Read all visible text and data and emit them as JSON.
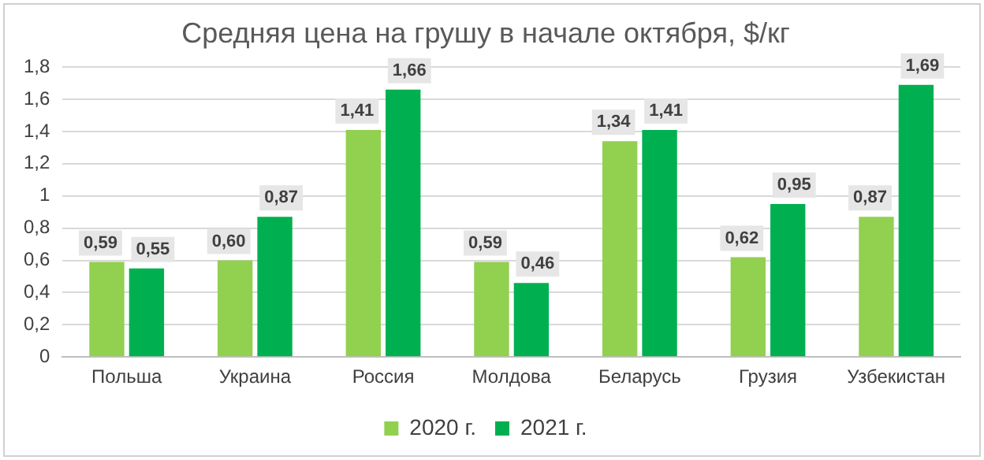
{
  "chart_data": {
    "type": "bar",
    "title": "Средняя цена на грушу в начале октября, $/кг",
    "categories": [
      "Польша",
      "Украина",
      "Россия",
      "Молдова",
      "Беларусь",
      "Грузия",
      "Узбекистан"
    ],
    "series": [
      {
        "name": "2020 г.",
        "color": "#92d050",
        "values": [
          0.59,
          0.6,
          1.41,
          0.59,
          1.34,
          0.62,
          0.87
        ],
        "value_labels": [
          "0,59",
          "0,60",
          "1,41",
          "0,59",
          "1,34",
          "0,62",
          "0,87"
        ]
      },
      {
        "name": "2021 г.",
        "color": "#00b050",
        "values": [
          0.55,
          0.87,
          1.66,
          0.46,
          1.41,
          0.95,
          1.69
        ],
        "value_labels": [
          "0,55",
          "0,87",
          "1,66",
          "0,46",
          "1,41",
          "0,95",
          "1,69"
        ]
      }
    ],
    "ylim": [
      0,
      1.8
    ],
    "yticks": [
      {
        "value": 0,
        "label": "0"
      },
      {
        "value": 0.2,
        "label": "0,2"
      },
      {
        "value": 0.4,
        "label": "0,4"
      },
      {
        "value": 0.6,
        "label": "0,6"
      },
      {
        "value": 0.8,
        "label": "0,8"
      },
      {
        "value": 1,
        "label": "1"
      },
      {
        "value": 1.2,
        "label": "1,2"
      },
      {
        "value": 1.4,
        "label": "1,4"
      },
      {
        "value": 1.6,
        "label": "1,6"
      },
      {
        "value": 1.8,
        "label": "1,8"
      }
    ],
    "grid": "y",
    "legend": "bottom"
  }
}
